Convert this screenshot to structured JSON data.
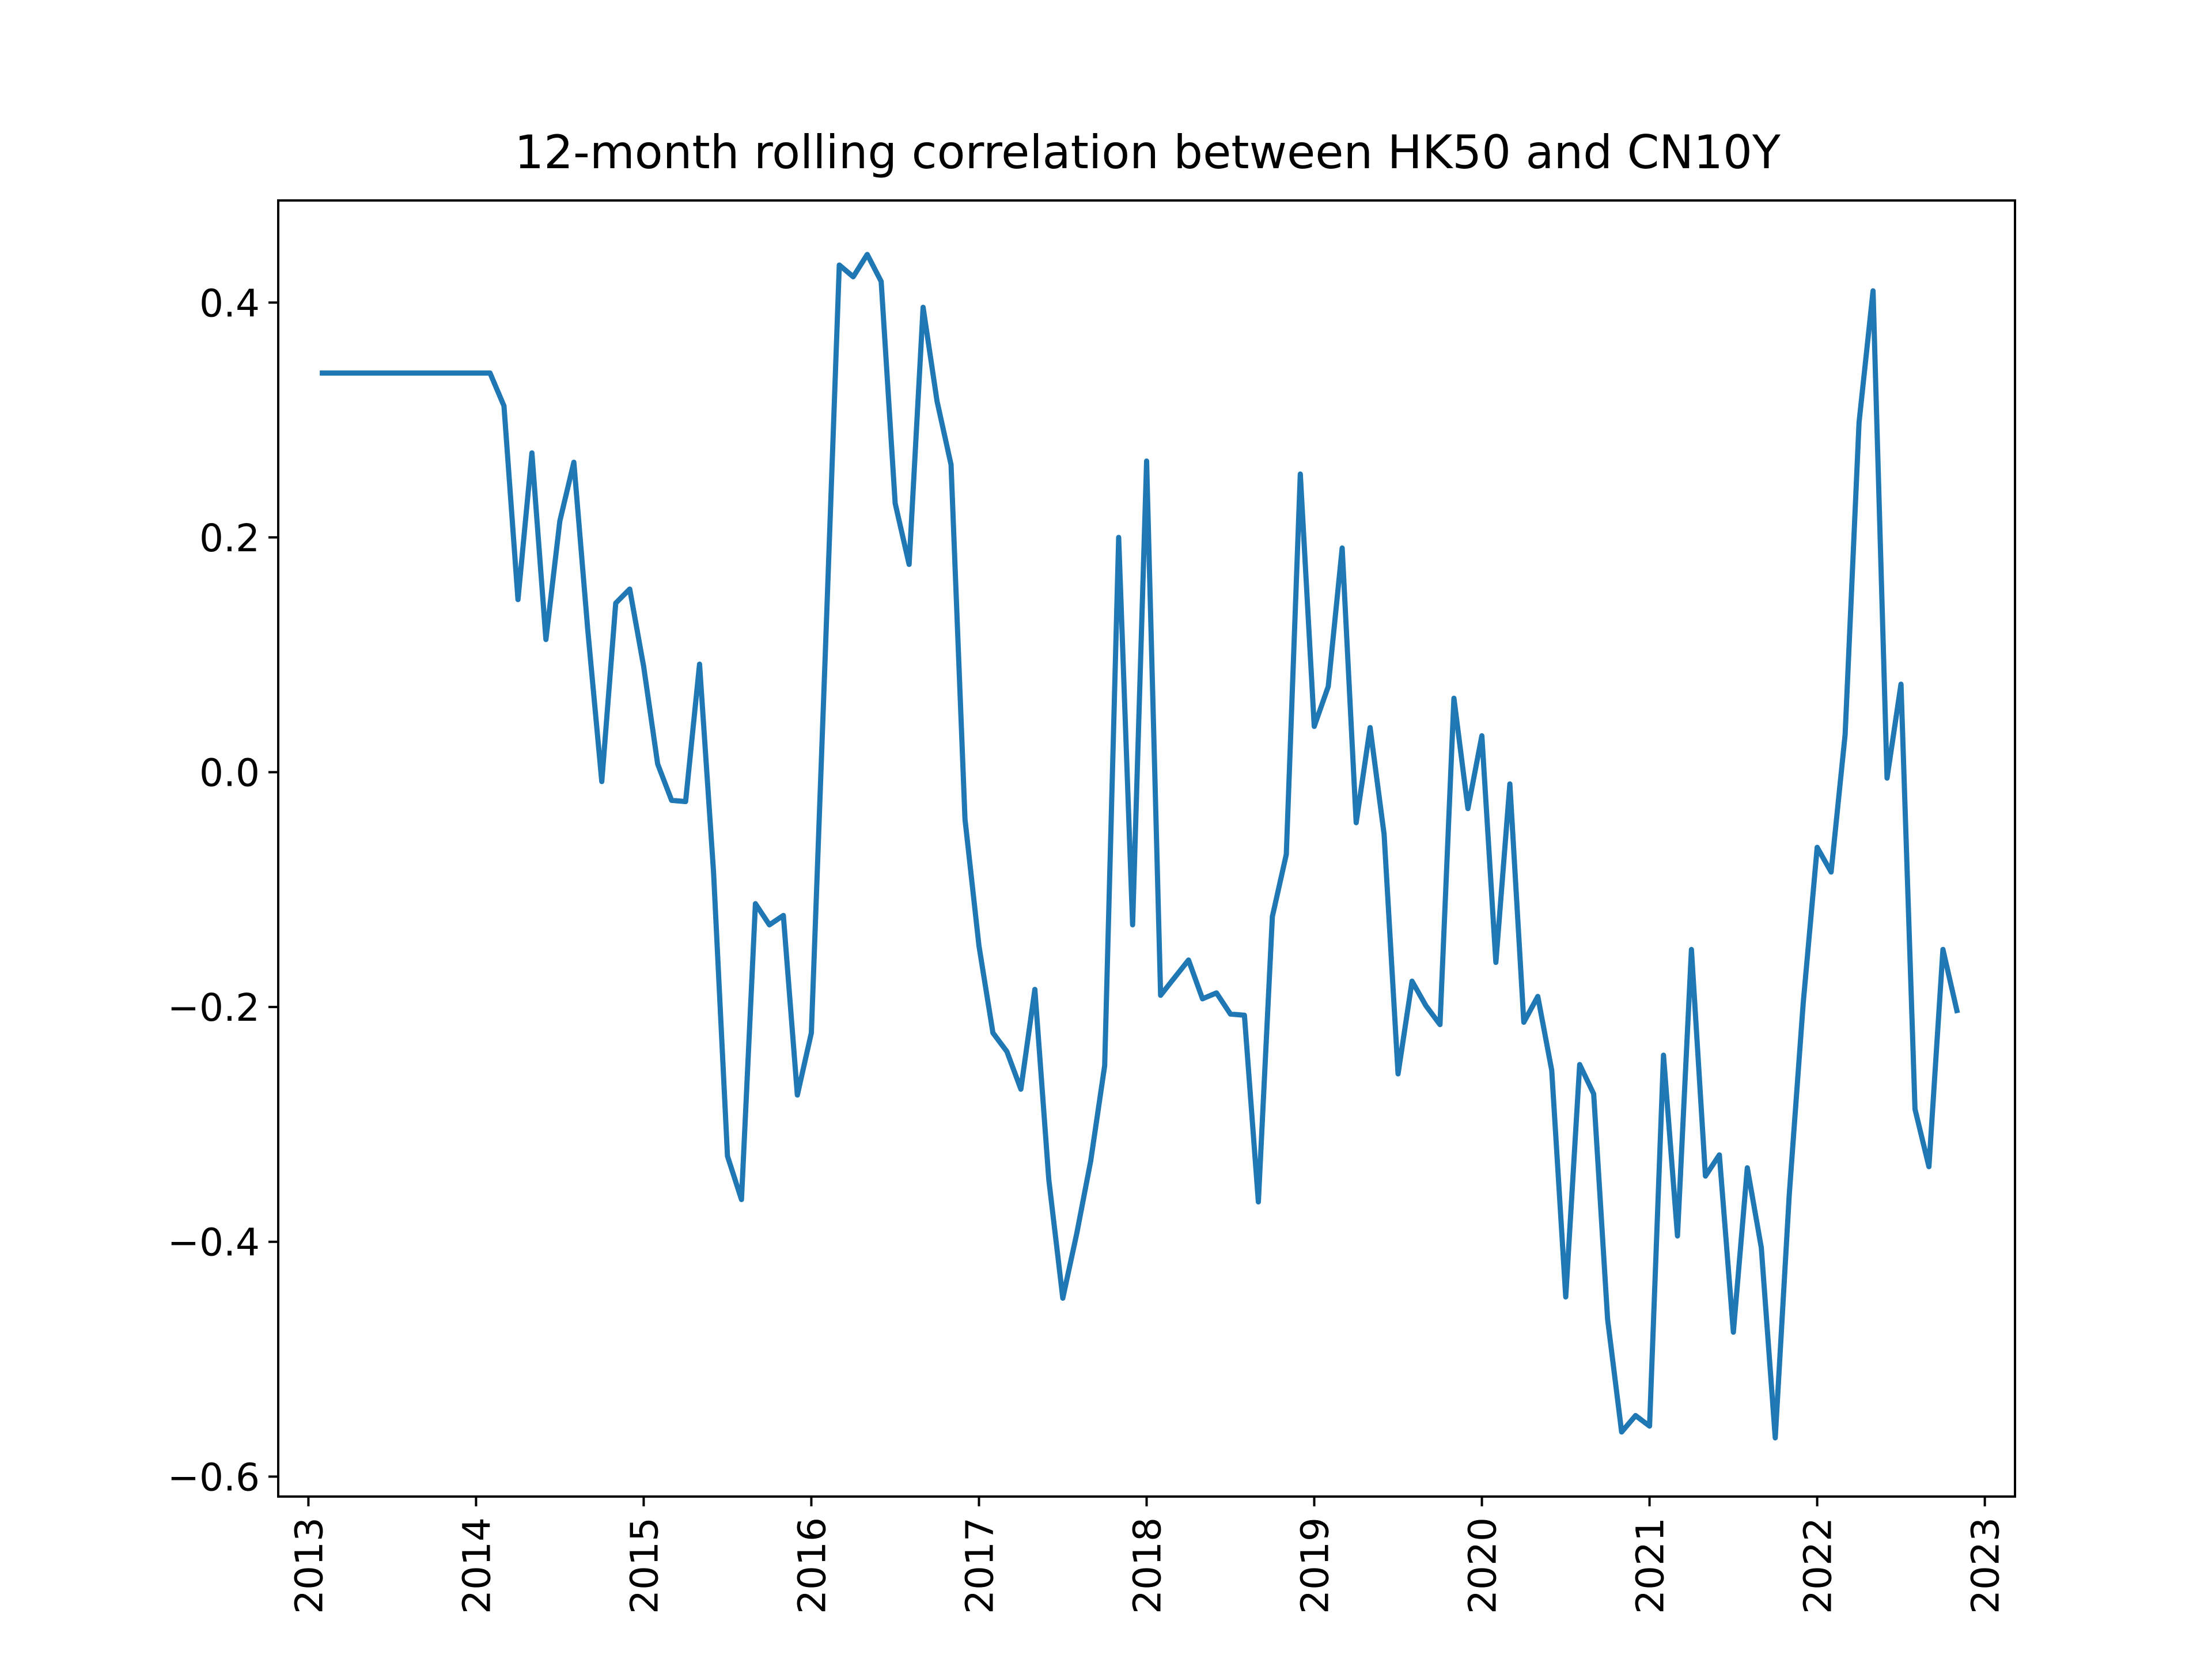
{
  "chart_data": {
    "type": "line",
    "title": "12-month rolling correlation between HK50 and CN10Y",
    "xlabel": "",
    "ylabel": "",
    "xlim": [
      2012.82,
      2023.18
    ],
    "ylim": [
      -0.617,
      0.487
    ],
    "x_ticks": [
      "2013",
      "2014",
      "2015",
      "2016",
      "2017",
      "2018",
      "2019",
      "2020",
      "2021",
      "2022",
      "2023"
    ],
    "y_ticks": [
      {
        "value": 0.4,
        "label": "0.4"
      },
      {
        "value": 0.2,
        "label": "0.2"
      },
      {
        "value": 0.0,
        "label": "0.0"
      },
      {
        "value": -0.2,
        "label": "−0.2"
      },
      {
        "value": -0.4,
        "label": "−0.4"
      },
      {
        "value": -0.6,
        "label": "−0.6"
      }
    ],
    "grid": false,
    "series": [
      {
        "color": "#1f77b4",
        "x": [
          "2013-02",
          "2013-03",
          "2013-04",
          "2013-05",
          "2013-06",
          "2013-07",
          "2013-08",
          "2013-09",
          "2013-10",
          "2013-11",
          "2013-12",
          "2014-01",
          "2014-02",
          "2014-03",
          "2014-04",
          "2014-05",
          "2014-06",
          "2014-07",
          "2014-08",
          "2014-09",
          "2014-10",
          "2014-11",
          "2014-12",
          "2015-01",
          "2015-02",
          "2015-03",
          "2015-04",
          "2015-05",
          "2015-06",
          "2015-07",
          "2015-08",
          "2015-09",
          "2015-10",
          "2015-11",
          "2015-12",
          "2016-01",
          "2016-02",
          "2016-03",
          "2016-04",
          "2016-05",
          "2016-06",
          "2016-07",
          "2016-08",
          "2016-09",
          "2016-10",
          "2016-11",
          "2016-12",
          "2017-01",
          "2017-02",
          "2017-03",
          "2017-04",
          "2017-05",
          "2017-06",
          "2017-07",
          "2017-08",
          "2017-09",
          "2017-10",
          "2017-11",
          "2017-12",
          "2018-01",
          "2018-02",
          "2018-03",
          "2018-04",
          "2018-05",
          "2018-06",
          "2018-07",
          "2018-08",
          "2018-09",
          "2018-10",
          "2018-11",
          "2018-12",
          "2019-01",
          "2019-02",
          "2019-03",
          "2019-04",
          "2019-05",
          "2019-06",
          "2019-07",
          "2019-08",
          "2019-09",
          "2019-10",
          "2019-11",
          "2019-12",
          "2020-01",
          "2020-02",
          "2020-03",
          "2020-04",
          "2020-05",
          "2020-06",
          "2020-07",
          "2020-08",
          "2020-09",
          "2020-10",
          "2020-11",
          "2020-12",
          "2021-01",
          "2021-02",
          "2021-03",
          "2021-04",
          "2021-05",
          "2021-06",
          "2021-07",
          "2021-08",
          "2021-09",
          "2021-10",
          "2021-11",
          "2021-12",
          "2022-01",
          "2022-02",
          "2022-03",
          "2022-04",
          "2022-05",
          "2022-06",
          "2022-07",
          "2022-08",
          "2022-09",
          "2022-10",
          "2022-11"
        ],
        "y": [
          0.34,
          0.34,
          0.34,
          0.34,
          0.34,
          0.34,
          0.34,
          0.34,
          0.34,
          0.34,
          0.34,
          0.34,
          0.34,
          0.312,
          0.147,
          0.272,
          0.113,
          0.214,
          0.264,
          0.121,
          -0.008,
          0.144,
          0.156,
          0.09,
          0.007,
          -0.024,
          -0.025,
          0.092,
          -0.085,
          -0.327,
          -0.364,
          -0.112,
          -0.13,
          -0.122,
          -0.275,
          -0.222,
          0.101,
          0.432,
          0.422,
          0.441,
          0.418,
          0.229,
          0.177,
          0.396,
          0.316,
          0.262,
          -0.04,
          -0.148,
          -0.222,
          -0.238,
          -0.27,
          -0.185,
          -0.347,
          -0.448,
          -0.393,
          -0.331,
          -0.25,
          0.2,
          -0.13,
          0.265,
          -0.19,
          -0.175,
          -0.16,
          -0.193,
          -0.188,
          -0.206,
          -0.207,
          -0.366,
          -0.123,
          -0.07,
          0.254,
          0.039,
          0.073,
          0.191,
          -0.043,
          0.038,
          -0.053,
          -0.257,
          -0.178,
          -0.199,
          -0.215,
          0.063,
          -0.031,
          0.031,
          -0.162,
          -0.01,
          -0.213,
          -0.191,
          -0.254,
          -0.447,
          -0.249,
          -0.274,
          -0.466,
          -0.562,
          -0.548,
          -0.557,
          -0.241,
          -0.395,
          -0.151,
          -0.344,
          -0.326,
          -0.477,
          -0.337,
          -0.405,
          -0.567,
          -0.36,
          -0.197,
          -0.064,
          -0.085,
          0.032,
          0.298,
          0.41,
          -0.005,
          0.075,
          -0.287,
          -0.336,
          -0.151,
          -0.203
        ]
      }
    ]
  }
}
